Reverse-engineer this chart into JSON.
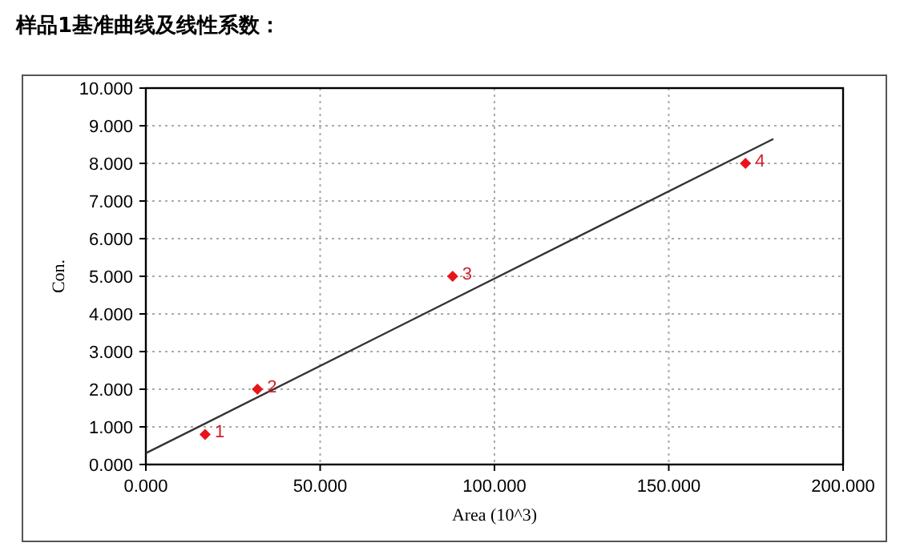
{
  "chart_data": {
    "type": "scatter",
    "title": "样品1基准曲线及线性系数：",
    "xlabel": "Area (10^3)",
    "ylabel": "Con.",
    "xlim": [
      0,
      200
    ],
    "ylim": [
      0,
      10
    ],
    "xticks": [
      {
        "value": 0,
        "label": "0.000"
      },
      {
        "value": 50,
        "label": "50.000"
      },
      {
        "value": 100,
        "label": "100.000"
      },
      {
        "value": 150,
        "label": "150.000"
      },
      {
        "value": 200,
        "label": "200.000"
      }
    ],
    "yticks": [
      {
        "value": 0,
        "label": "0.000"
      },
      {
        "value": 1,
        "label": "1.000"
      },
      {
        "value": 2,
        "label": "2.000"
      },
      {
        "value": 3,
        "label": "3.000"
      },
      {
        "value": 4,
        "label": "4.000"
      },
      {
        "value": 5,
        "label": "5.000"
      },
      {
        "value": 6,
        "label": "6.000"
      },
      {
        "value": 7,
        "label": "7.000"
      },
      {
        "value": 8,
        "label": "8.000"
      },
      {
        "value": 9,
        "label": "9.000"
      },
      {
        "value": 10,
        "label": "10.000"
      }
    ],
    "grid": true,
    "series": [
      {
        "marker": "diamond",
        "color": "#e8141b",
        "x": [
          17,
          32,
          88,
          172
        ],
        "values": [
          0.8,
          2.0,
          5.0,
          8.0
        ]
      },
      {
        "type": "line",
        "color": "#333333",
        "x": [
          0,
          180
        ],
        "values": [
          0.3,
          8.65
        ]
      }
    ],
    "annotations": [
      {
        "text": "1",
        "x": 17,
        "y": 0.8
      },
      {
        "text": "2",
        "x": 32,
        "y": 2.0
      },
      {
        "text": "3",
        "x": 88,
        "y": 5.0
      },
      {
        "text": "4",
        "x": 172,
        "y": 8.0
      }
    ]
  }
}
